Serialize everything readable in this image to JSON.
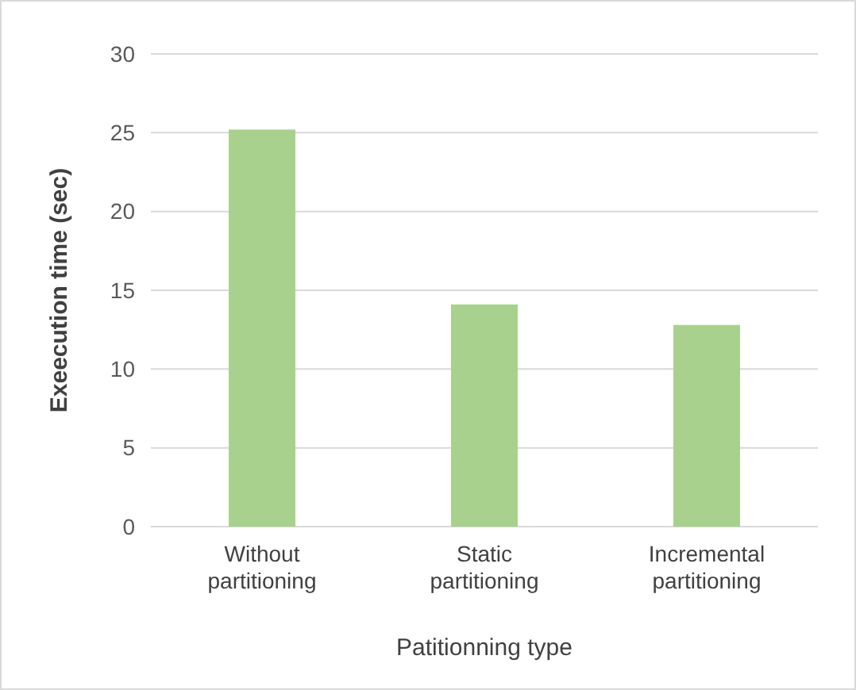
{
  "chart_data": {
    "type": "bar",
    "categories": [
      "Without partitioning",
      "Static partitioning",
      "Incremental partitioning"
    ],
    "values": [
      25.2,
      14.1,
      12.8
    ],
    "color": "#a9d18e",
    "ylim": [
      0,
      30
    ],
    "yticks": [
      0,
      5,
      10,
      15,
      20,
      25,
      30
    ],
    "grid": "y",
    "xlabel": "Patitionning type",
    "ylabel": "Exeecution time (sec)"
  }
}
